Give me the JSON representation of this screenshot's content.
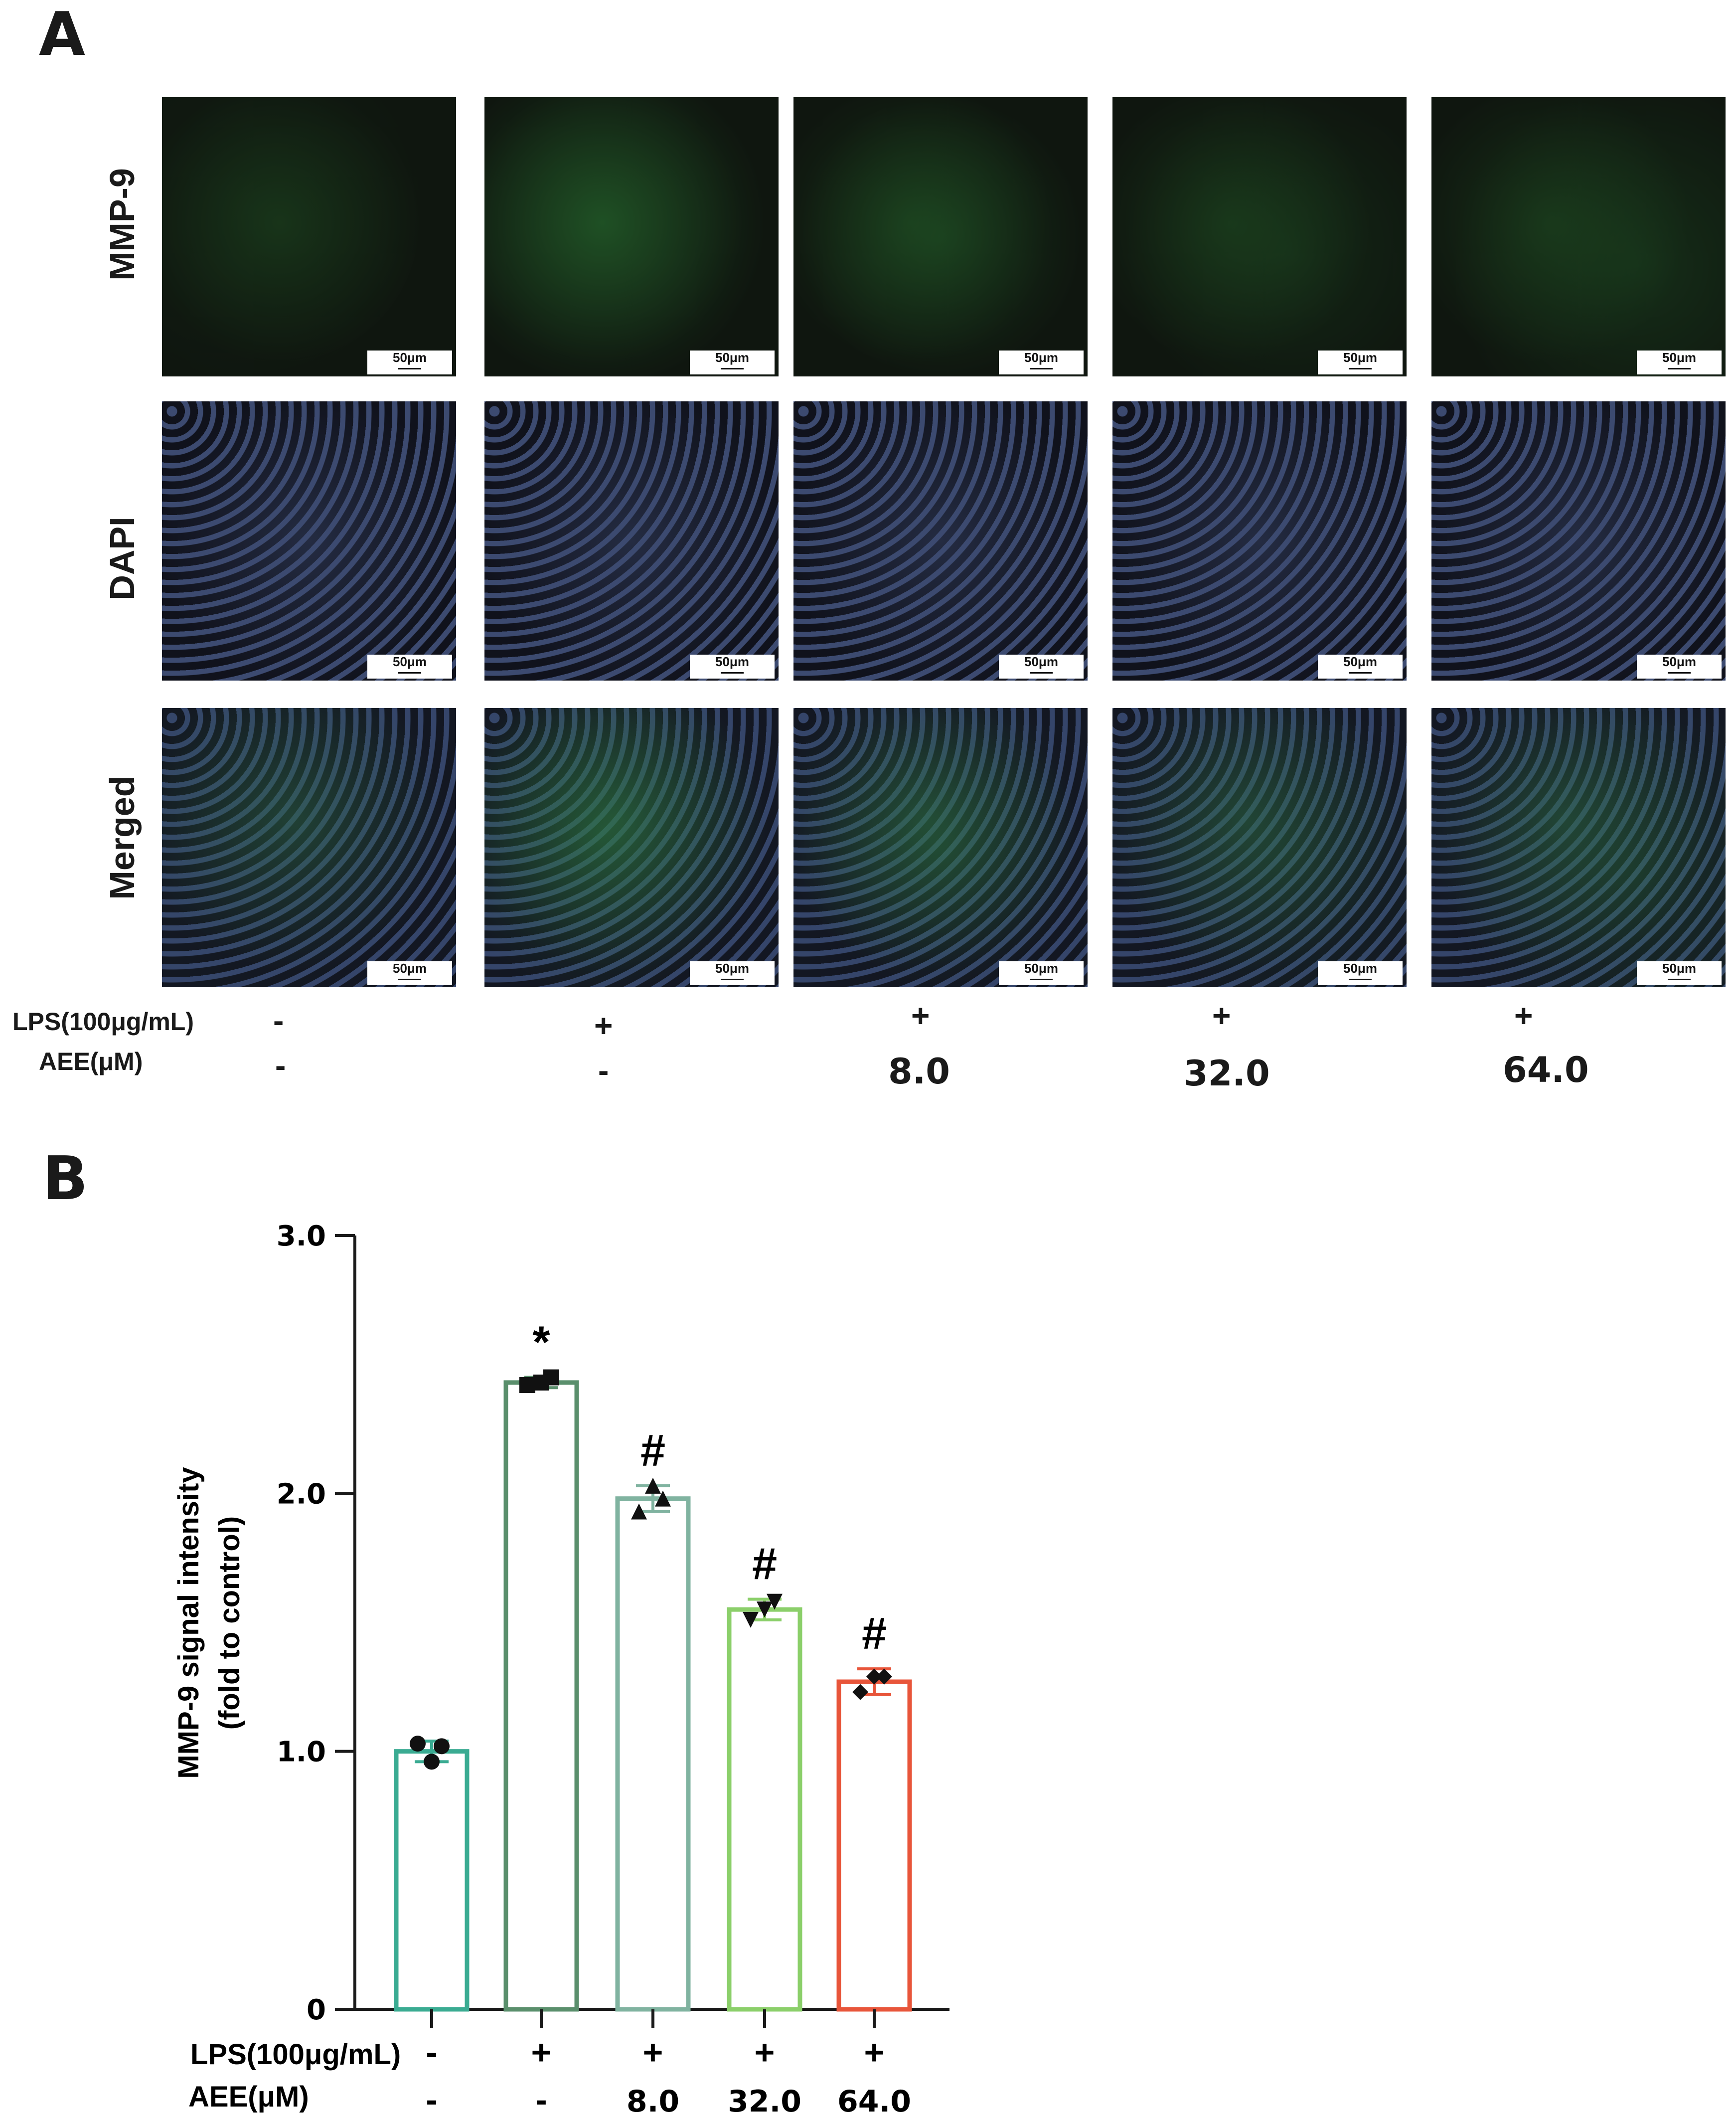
{
  "panel_a": {
    "letter": "A",
    "row_labels": [
      "MMP-9",
      "DAPI",
      "Merged"
    ],
    "scale_bar": "50μm",
    "treatment_labels": {
      "lps": "LPS(100μg/mL)",
      "aee": "AEE(μM)"
    },
    "lps_values": [
      "-",
      "+",
      "+",
      "+",
      "+"
    ],
    "aee_values": [
      "-",
      "-",
      "8.0",
      "32.0",
      "64.0"
    ],
    "image_colors": {
      "mmp9_background": "#0f160f",
      "mmp9_signal": "#2e7d32",
      "dapi_background": "#10121c",
      "dapi_nuclei": "#3c4a70",
      "merged_signal": "#2f6b4a"
    }
  },
  "panel_b": {
    "letter": "B"
  },
  "chart_data": {
    "type": "bar",
    "ylabel_line1": "MMP-9 signal intensity",
    "ylabel_line2": "(fold to control)",
    "ylim": [
      0,
      3.0
    ],
    "yticks": [
      0,
      1.0,
      2.0,
      3.0
    ],
    "ytick_labels": [
      "0",
      "1.0",
      "2.0",
      "3.0"
    ],
    "row_labels": {
      "lps": "LPS(100μg/mL)",
      "aee": "AEE(μM)"
    },
    "lps": [
      "-",
      "+",
      "+",
      "+",
      "+"
    ],
    "aee": [
      "-",
      "-",
      "8.0",
      "32.0",
      "64.0"
    ],
    "values": [
      1.0,
      2.43,
      1.98,
      1.55,
      1.27
    ],
    "errors": [
      0.04,
      0.02,
      0.05,
      0.04,
      0.05
    ],
    "points": [
      [
        1.03,
        1.02,
        0.96
      ],
      [
        2.42,
        2.45,
        2.43
      ],
      [
        1.93,
        1.98,
        2.03
      ],
      [
        1.51,
        1.58,
        1.55
      ],
      [
        1.23,
        1.29,
        1.29
      ]
    ],
    "markers": [
      "circle",
      "square",
      "triangle-up",
      "triangle-down",
      "diamond"
    ],
    "significance": [
      "",
      "*",
      "#",
      "#",
      "#"
    ],
    "colors": [
      "#3aab92",
      "#5a8f6c",
      "#80b3a0",
      "#8bcf6a",
      "#e8553a"
    ]
  }
}
